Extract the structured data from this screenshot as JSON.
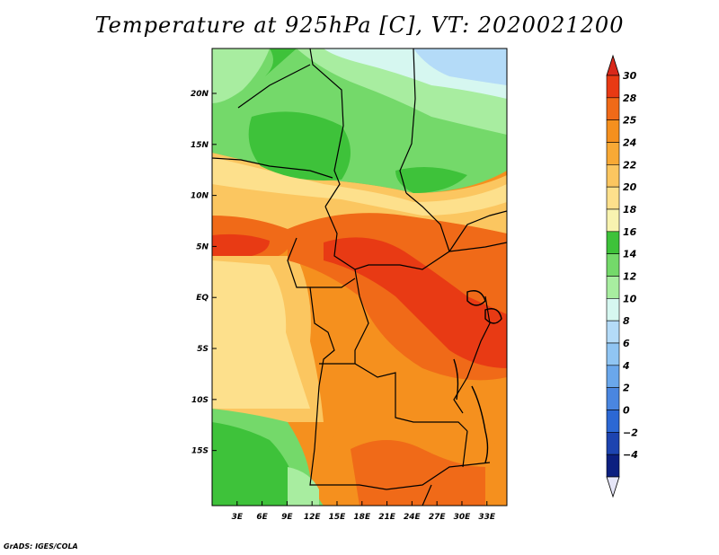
{
  "title": "Temperature at 925hPa [C], VT: 2020021200",
  "credit": "GrADS: IGES/COLA",
  "map": {
    "lat_ticks": [
      {
        "label": "20N",
        "lat": 20
      },
      {
        "label": "15N",
        "lat": 15
      },
      {
        "label": "10N",
        "lat": 10
      },
      {
        "label": "5N",
        "lat": 5
      },
      {
        "label": "EQ",
        "lat": 0
      },
      {
        "label": "5S",
        "lat": -5
      },
      {
        "label": "10S",
        "lat": -10
      },
      {
        "label": "15S",
        "lat": -15
      }
    ],
    "lon_ticks": [
      {
        "label": "3E",
        "lon": 3
      },
      {
        "label": "6E",
        "lon": 6
      },
      {
        "label": "9E",
        "lon": 9
      },
      {
        "label": "12E",
        "lon": 12
      },
      {
        "label": "15E",
        "lon": 15
      },
      {
        "label": "18E",
        "lon": 18
      },
      {
        "label": "21E",
        "lon": 21
      },
      {
        "label": "24E",
        "lon": 24
      },
      {
        "label": "27E",
        "lon": 27
      },
      {
        "label": "30E",
        "lon": 30
      },
      {
        "label": "33E",
        "lon": 33
      }
    ]
  },
  "colorbar": {
    "levels": [
      {
        "label": "30",
        "color": "#e83a14"
      },
      {
        "label": "28",
        "color": "#f06a18"
      },
      {
        "label": "25",
        "color": "#f5901e"
      },
      {
        "label": "24",
        "color": "#f8a935"
      },
      {
        "label": "22",
        "color": "#fbc660"
      },
      {
        "label": "20",
        "color": "#fde08c"
      },
      {
        "label": "18",
        "color": "#f8f3b0"
      },
      {
        "label": "16",
        "color": "#3ec23a"
      },
      {
        "label": "14",
        "color": "#74d96a"
      },
      {
        "label": "12",
        "color": "#a8eda0"
      },
      {
        "label": "10",
        "color": "#d6f7f0"
      },
      {
        "label": "8",
        "color": "#b4dbf8"
      },
      {
        "label": "6",
        "color": "#90c5f3"
      },
      {
        "label": "4",
        "color": "#6aa7eb"
      },
      {
        "label": "2",
        "color": "#4a86e0"
      },
      {
        "label": "0",
        "color": "#2c68d4"
      },
      {
        "label": "−2",
        "color": "#1d44b0"
      },
      {
        "label": "−4",
        "color": "#0c1f80"
      }
    ],
    "top_arrow_color": "#d9281a",
    "bottom_arrow_color": "#e6e6f8"
  }
}
